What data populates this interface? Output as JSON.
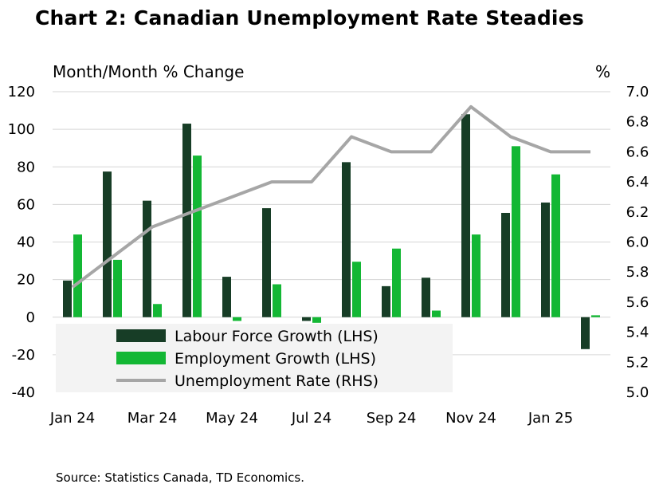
{
  "chart_data": {
    "type": "bar",
    "title": "Chart 2: Canadian Unemployment Rate Steadies",
    "ylabel_left": "Month/Month % Change",
    "ylabel_right": "%",
    "source": "Source: Statistics Canada, TD Economics.",
    "categories": [
      "Jan 24",
      "Feb 24",
      "Mar 24",
      "Apr 24",
      "May 24",
      "Jun 24",
      "Jul 24",
      "Aug 24",
      "Sep 24",
      "Oct 24",
      "Nov 24",
      "Dec 24",
      "Jan 25",
      "Feb 25"
    ],
    "x_tick_labels": [
      "Jan 24",
      "",
      "Mar 24",
      "",
      "May 24",
      "",
      "Jul 24",
      "",
      "Sep 24",
      "",
      "Nov 24",
      "",
      "Jan 25",
      ""
    ],
    "ylim_left": [
      -40,
      120
    ],
    "yticks_left": [
      -40,
      -20,
      0,
      20,
      40,
      60,
      80,
      100,
      120
    ],
    "ylim_right": [
      5.0,
      7.0
    ],
    "yticks_right": [
      5.0,
      5.2,
      5.4,
      5.6,
      5.8,
      6.0,
      6.2,
      6.4,
      6.6,
      6.8,
      7.0
    ],
    "grid": true,
    "series": [
      {
        "name": "Labour Force Growth (LHS)",
        "type": "bar",
        "axis": "left",
        "color": "#173d26",
        "values": [
          19.5,
          77.5,
          62,
          103,
          21.5,
          58,
          -2,
          82.5,
          16.5,
          21,
          108,
          55.5,
          61,
          -17
        ]
      },
      {
        "name": "Employment Growth (LHS)",
        "type": "bar",
        "axis": "left",
        "color": "#13b734",
        "values": [
          44,
          30.5,
          7,
          86,
          -2,
          17.5,
          -3,
          29.5,
          36.5,
          3.5,
          44,
          91,
          76,
          1
        ]
      },
      {
        "name": "Unemployment Rate (RHS)",
        "type": "line",
        "axis": "right",
        "color": "#a6a6a6",
        "values": [
          5.7,
          5.9,
          6.1,
          6.2,
          6.3,
          6.4,
          6.4,
          6.7,
          6.6,
          6.6,
          6.9,
          6.7,
          6.6,
          6.6
        ]
      }
    ],
    "legend_position": "bottom-left"
  }
}
